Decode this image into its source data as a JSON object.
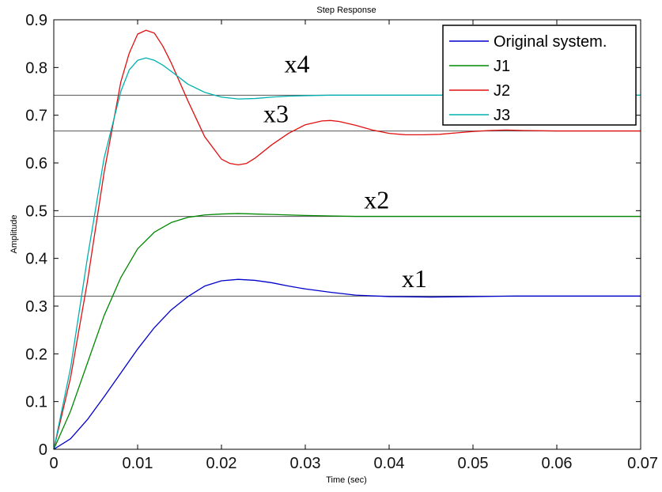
{
  "chart_data": {
    "type": "line",
    "title": "Step Response",
    "xlabel": "Time (sec)",
    "ylabel": "Amplitude",
    "xlim": [
      0,
      0.07
    ],
    "ylim": [
      0,
      0.9
    ],
    "xticks": [
      0,
      0.01,
      0.02,
      0.03,
      0.04,
      0.05,
      0.06,
      0.07
    ],
    "xtick_labels": [
      "0",
      "0.01",
      "0.02",
      "0.03",
      "0.04",
      "0.05",
      "0.06",
      "0.07"
    ],
    "yticks": [
      0,
      0.1,
      0.2,
      0.3,
      0.4,
      0.5,
      0.6,
      0.7,
      0.8,
      0.9
    ],
    "ytick_labels": [
      "0",
      "0.1",
      "0.2",
      "0.3",
      "0.4",
      "0.5",
      "0.6",
      "0.7",
      "0.8",
      "0.9"
    ],
    "grid": false,
    "legend_position": "top-right",
    "series": [
      {
        "name": "Original system.",
        "color": "#0000cc",
        "x": [
          0,
          0.002,
          0.004,
          0.006,
          0.008,
          0.01,
          0.012,
          0.014,
          0.016,
          0.018,
          0.02,
          0.022,
          0.024,
          0.026,
          0.028,
          0.03,
          0.033,
          0.036,
          0.04,
          0.045,
          0.05,
          0.055,
          0.06,
          0.065,
          0.07
        ],
        "y": [
          0,
          0.022,
          0.062,
          0.11,
          0.16,
          0.21,
          0.255,
          0.292,
          0.32,
          0.342,
          0.353,
          0.356,
          0.354,
          0.349,
          0.342,
          0.336,
          0.329,
          0.323,
          0.32,
          0.319,
          0.32,
          0.321,
          0.321,
          0.321,
          0.321
        ]
      },
      {
        "name": "J1",
        "color": "#008800",
        "x": [
          0,
          0.002,
          0.004,
          0.006,
          0.008,
          0.01,
          0.012,
          0.014,
          0.016,
          0.018,
          0.02,
          0.022,
          0.024,
          0.026,
          0.028,
          0.03,
          0.033,
          0.036,
          0.04,
          0.05,
          0.06,
          0.07
        ],
        "y": [
          0,
          0.08,
          0.18,
          0.28,
          0.36,
          0.42,
          0.455,
          0.475,
          0.486,
          0.491,
          0.493,
          0.494,
          0.493,
          0.492,
          0.491,
          0.49,
          0.489,
          0.488,
          0.488,
          0.488,
          0.488,
          0.488
        ]
      },
      {
        "name": "J2",
        "color": "#e01010",
        "x": [
          0,
          0.002,
          0.004,
          0.006,
          0.008,
          0.009,
          0.01,
          0.011,
          0.012,
          0.013,
          0.014,
          0.016,
          0.018,
          0.02,
          0.021,
          0.022,
          0.023,
          0.024,
          0.026,
          0.028,
          0.03,
          0.032,
          0.033,
          0.034,
          0.036,
          0.038,
          0.04,
          0.042,
          0.044,
          0.046,
          0.048,
          0.05,
          0.052,
          0.054,
          0.056,
          0.06,
          0.065,
          0.07
        ],
        "y": [
          0,
          0.15,
          0.35,
          0.58,
          0.77,
          0.83,
          0.87,
          0.878,
          0.872,
          0.845,
          0.81,
          0.73,
          0.655,
          0.608,
          0.599,
          0.596,
          0.599,
          0.61,
          0.638,
          0.662,
          0.68,
          0.688,
          0.689,
          0.687,
          0.679,
          0.669,
          0.662,
          0.659,
          0.659,
          0.66,
          0.663,
          0.666,
          0.668,
          0.669,
          0.668,
          0.667,
          0.667,
          0.667
        ]
      },
      {
        "name": "J3",
        "color": "#00b0b0",
        "x": [
          0,
          0.002,
          0.004,
          0.006,
          0.008,
          0.009,
          0.01,
          0.011,
          0.012,
          0.013,
          0.014,
          0.016,
          0.018,
          0.02,
          0.022,
          0.024,
          0.026,
          0.028,
          0.03,
          0.033,
          0.036,
          0.04,
          0.05,
          0.06,
          0.07
        ],
        "y": [
          0,
          0.17,
          0.4,
          0.61,
          0.75,
          0.795,
          0.815,
          0.82,
          0.815,
          0.805,
          0.792,
          0.765,
          0.748,
          0.738,
          0.734,
          0.735,
          0.738,
          0.74,
          0.741,
          0.742,
          0.742,
          0.742,
          0.742,
          0.742,
          0.742
        ]
      }
    ],
    "reference_lines": [
      {
        "y": 0.742,
        "color": "#555555"
      },
      {
        "y": 0.667,
        "color": "#555555"
      },
      {
        "y": 0.488,
        "color": "#555555"
      },
      {
        "y": 0.321,
        "color": "#555555"
      }
    ],
    "annotations": [
      {
        "text": "x4",
        "x": 0.0275,
        "y": 0.79
      },
      {
        "text": "x3",
        "x": 0.025,
        "y": 0.685
      },
      {
        "text": "x2",
        "x": 0.037,
        "y": 0.505
      },
      {
        "text": "x1",
        "x": 0.0415,
        "y": 0.34
      }
    ]
  }
}
